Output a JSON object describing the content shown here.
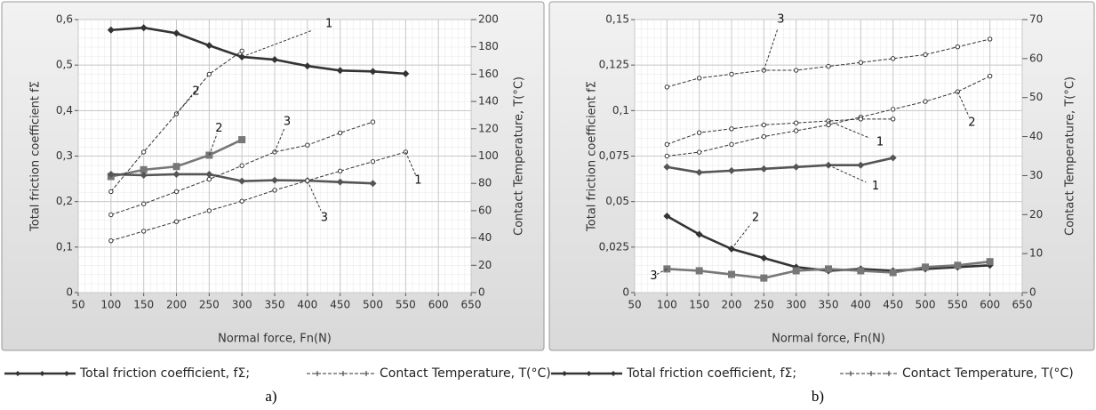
{
  "chart_data": [
    {
      "type": "line",
      "caption": "a)",
      "xlabel": "Normal force, Fn(N)",
      "ylabel": "Total friction coefficient fΣ",
      "y2label": "Contact Temperature, T(°C)",
      "xlim": [
        50,
        650
      ],
      "xticks": [
        50,
        100,
        150,
        200,
        250,
        300,
        350,
        400,
        450,
        500,
        550,
        600,
        650
      ],
      "ylim": [
        0,
        0.6
      ],
      "yticks": [
        0,
        {
          "value": 0.1,
          "label": "0,1"
        },
        {
          "value": 0.2,
          "label": "0,2"
        },
        {
          "value": 0.3,
          "label": "0,3"
        },
        {
          "value": 0.4,
          "label": "0,4"
        },
        {
          "value": 0.5,
          "label": "0,5"
        },
        {
          "value": 0.6,
          "label": "0,6"
        }
      ],
      "y2lim": [
        0,
        200
      ],
      "y2ticks": [
        0,
        20,
        40,
        60,
        80,
        100,
        120,
        140,
        160,
        180,
        200
      ],
      "grid": true,
      "legend": [
        "Total friction coefficient, fΣ;",
        "Contact Temperature, T(°C)"
      ],
      "series": [
        {
          "name": "1",
          "color": "#333333",
          "marker": "diamond",
          "style": "solid",
          "x": [
            100,
            150,
            200,
            250,
            300,
            350,
            400,
            450,
            500,
            550
          ],
          "values": [
            0.577,
            0.582,
            0.57,
            0.543,
            0.518,
            0.512,
            0.498,
            0.488,
            0.486,
            0.481
          ]
        },
        {
          "name": "2",
          "color": "#777777",
          "marker": "square",
          "style": "solid",
          "x": [
            100,
            150,
            200,
            250,
            300
          ],
          "values": [
            0.255,
            0.27,
            0.277,
            0.302,
            0.336
          ]
        },
        {
          "name": "3",
          "color": "#555555",
          "marker": "diamond",
          "style": "solid",
          "x": [
            100,
            150,
            200,
            250,
            300,
            350,
            400,
            450,
            500
          ],
          "values": [
            0.26,
            0.258,
            0.26,
            0.26,
            0.245,
            0.247,
            0.246,
            0.243,
            0.24
          ]
        },
        {
          "name": "1",
          "color": "#333333",
          "marker": "circle",
          "style": "dashed",
          "axis": "y2",
          "x": [
            100,
            150,
            200,
            250,
            300,
            350,
            400,
            450,
            500,
            550
          ],
          "values": [
            38,
            45,
            52,
            60,
            67,
            75,
            82,
            89,
            96,
            103
          ]
        },
        {
          "name": "2",
          "color": "#333333",
          "marker": "circle",
          "style": "dashed",
          "axis": "y2",
          "x": [
            100,
            150,
            200,
            250,
            300
          ],
          "values": [
            74,
            103,
            131,
            160,
            177
          ]
        },
        {
          "name": "3",
          "color": "#333333",
          "marker": "circle",
          "style": "dashed",
          "axis": "y2",
          "x": [
            100,
            150,
            200,
            250,
            300,
            350,
            400,
            450,
            500
          ],
          "values": [
            57,
            65,
            74,
            83,
            93,
            103,
            108,
            117,
            125
          ]
        }
      ]
    },
    {
      "type": "line",
      "caption": "b)",
      "xlabel": "Normal force, Fn(N)",
      "ylabel": "Total friction coefficient fΣ",
      "y2label": "Contact Temperature, T(°C)",
      "xlim": [
        50,
        650
      ],
      "xticks": [
        50,
        100,
        150,
        200,
        250,
        300,
        350,
        400,
        450,
        500,
        550,
        600,
        650
      ],
      "ylim": [
        0,
        0.15
      ],
      "yticks": [
        0,
        {
          "value": 0.025,
          "label": "0,025"
        },
        {
          "value": 0.05,
          "label": "0,05"
        },
        {
          "value": 0.075,
          "label": "0,075"
        },
        {
          "value": 0.1,
          "label": "0,1"
        },
        {
          "value": 0.125,
          "label": "0,125"
        },
        {
          "value": 0.15,
          "label": "0,15"
        }
      ],
      "y2lim": [
        0,
        70
      ],
      "y2ticks": [
        0,
        10,
        20,
        30,
        40,
        50,
        60,
        70
      ],
      "grid": true,
      "legend": [
        "Total friction coefficient, fΣ;",
        "Contact Temperature, T(°C)"
      ],
      "series": [
        {
          "name": "1",
          "color": "#555555",
          "marker": "diamond",
          "style": "solid",
          "x": [
            100,
            150,
            200,
            250,
            300,
            350,
            400,
            450
          ],
          "values": [
            0.069,
            0.066,
            0.067,
            0.068,
            0.069,
            0.07,
            0.07,
            0.074
          ]
        },
        {
          "name": "2",
          "color": "#333333",
          "marker": "diamond",
          "style": "solid",
          "x": [
            100,
            150,
            200,
            250,
            300,
            350,
            400,
            450,
            500,
            550,
            600
          ],
          "values": [
            0.042,
            0.032,
            0.024,
            0.019,
            0.014,
            0.012,
            0.013,
            0.012,
            0.013,
            0.014,
            0.015
          ]
        },
        {
          "name": "3",
          "color": "#777777",
          "marker": "square",
          "style": "solid",
          "x": [
            100,
            150,
            200,
            250,
            300,
            350,
            400,
            450,
            500,
            550,
            600
          ],
          "values": [
            0.013,
            0.012,
            0.01,
            0.008,
            0.012,
            0.013,
            0.012,
            0.011,
            0.014,
            0.015,
            0.017
          ]
        },
        {
          "name": "3",
          "color": "#333333",
          "marker": "circle",
          "style": "dashed",
          "axis": "y2",
          "x": [
            100,
            150,
            200,
            250,
            300,
            350,
            400,
            450,
            500,
            550,
            600
          ],
          "values": [
            52.7,
            55,
            56,
            57,
            57,
            58,
            59,
            60,
            61,
            63,
            65
          ]
        },
        {
          "name": "2",
          "color": "#333333",
          "marker": "circle",
          "style": "dashed",
          "axis": "y2",
          "x": [
            100,
            150,
            200,
            250,
            300,
            350,
            400,
            450,
            500,
            550,
            600
          ],
          "values": [
            35,
            36,
            38,
            40,
            41.5,
            43,
            45,
            47,
            49,
            51.5,
            55.5
          ]
        },
        {
          "name": "1",
          "color": "#333333",
          "marker": "circle",
          "style": "dashed",
          "axis": "y2",
          "x": [
            100,
            150,
            200,
            250,
            300,
            350,
            400,
            450
          ],
          "values": [
            38,
            41,
            42,
            43,
            43.5,
            44,
            44.5,
            44.5
          ]
        }
      ]
    }
  ]
}
